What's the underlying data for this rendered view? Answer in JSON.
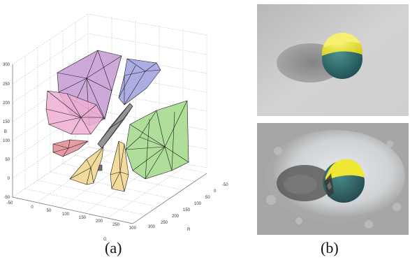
{
  "figure": {
    "panel_a": {
      "caption": "(a)",
      "axes": {
        "vertical_label": "B",
        "left_label": "G",
        "right_label": "R",
        "vertical_ticks": [
          "-50",
          "0",
          "50",
          "100",
          "150",
          "200",
          "250",
          "300"
        ],
        "left_ticks": [
          "-50",
          "0",
          "50",
          "100",
          "150",
          "200",
          "250",
          "300"
        ],
        "right_ticks": [
          "-50",
          "0",
          "50",
          "100",
          "150",
          "200",
          "250",
          "300"
        ]
      },
      "hull_colors": {
        "purple": "#c49ad4",
        "blue": "#9ea0de",
        "pink": "#eeaed2",
        "red": "#e29096",
        "dark": "#707070",
        "green": "#a4d88c",
        "yellow": "#f2d890"
      }
    },
    "panel_b": {
      "caption": "(b)"
    }
  }
}
